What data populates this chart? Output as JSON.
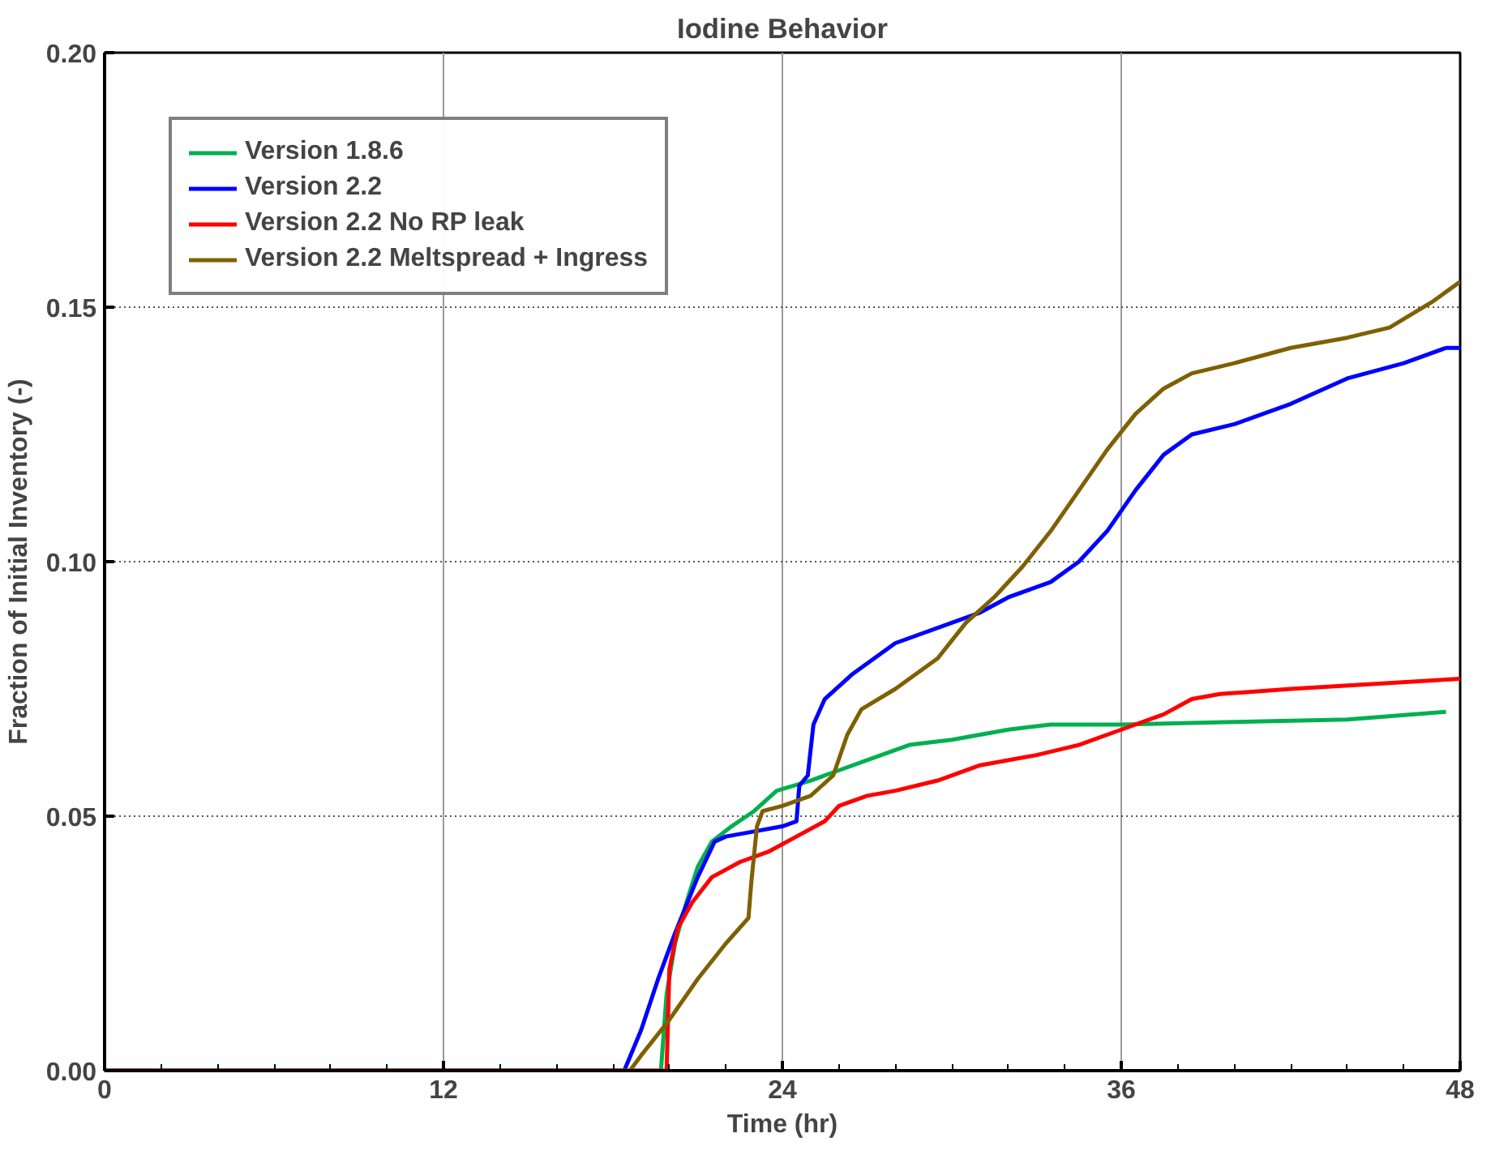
{
  "chart_data": {
    "type": "line",
    "title": "Iodine Behavior",
    "xlabel": "Time (hr)",
    "ylabel": "Fraction of Initial Inventory (-)",
    "xlim": [
      0,
      48
    ],
    "ylim": [
      0,
      0.2
    ],
    "xticks": [
      0,
      12,
      24,
      36,
      48
    ],
    "yticks": [
      {
        "value": 0,
        "label": "0.00"
      },
      {
        "value": 0.05,
        "label": "0.05"
      },
      {
        "value": 0.1,
        "label": "0.10"
      },
      {
        "value": 0.15,
        "label": "0.15"
      },
      {
        "value": 0.2,
        "label": "0.20"
      }
    ],
    "grid": true,
    "legend": "top left",
    "marker": "none",
    "line_style": "solid",
    "series": [
      {
        "name": "Version 1.8.6",
        "color": "#00b050",
        "x": [
          0,
          19.7,
          19.9,
          20.2,
          20.6,
          21.0,
          21.5,
          22.2,
          23,
          23.8,
          25,
          26,
          27,
          28.5,
          30,
          32,
          33.5,
          36,
          40,
          44,
          47.5
        ],
        "values": [
          0,
          0,
          0.015,
          0.025,
          0.033,
          0.04,
          0.045,
          0.048,
          0.051,
          0.055,
          0.057,
          0.059,
          0.061,
          0.064,
          0.065,
          0.067,
          0.068,
          0.068,
          0.0685,
          0.069,
          0.0705
        ]
      },
      {
        "name": "Version 2.2",
        "color": "#0000ff",
        "x": [
          0,
          18.4,
          19,
          19.6,
          20.2,
          21,
          21.6,
          22,
          23,
          24,
          24.5,
          24.6,
          24.9,
          25.1,
          25.5,
          26.5,
          28,
          30,
          31,
          32,
          33.5,
          34.5,
          35.5,
          36.5,
          37.5,
          38.5,
          40,
          42,
          44,
          46,
          47.5,
          48
        ],
        "values": [
          0,
          0,
          0.008,
          0.018,
          0.027,
          0.038,
          0.045,
          0.046,
          0.047,
          0.048,
          0.049,
          0.056,
          0.058,
          0.068,
          0.073,
          0.078,
          0.084,
          0.088,
          0.09,
          0.093,
          0.096,
          0.1,
          0.106,
          0.114,
          0.121,
          0.125,
          0.127,
          0.131,
          0.136,
          0.139,
          0.142,
          0.142
        ]
      },
      {
        "name": "Version 2.2 No RP leak",
        "color": "#ff0000",
        "x": [
          0,
          19.9,
          20.0,
          20.3,
          20.8,
          21.5,
          22.5,
          23.5,
          24.5,
          25.5,
          26,
          27,
          28,
          29.5,
          31,
          33,
          34.5,
          36,
          37.5,
          38.5,
          39.5,
          42,
          45,
          48
        ],
        "values": [
          0,
          0,
          0.02,
          0.028,
          0.033,
          0.038,
          0.041,
          0.043,
          0.046,
          0.049,
          0.052,
          0.054,
          0.055,
          0.057,
          0.06,
          0.062,
          0.064,
          0.067,
          0.07,
          0.073,
          0.074,
          0.075,
          0.076,
          0.077
        ]
      },
      {
        "name": "Version 2.2 Meltspread + Ingress",
        "color": "#7f6000",
        "x": [
          0,
          18.6,
          19,
          20,
          21,
          22,
          22.8,
          22.9,
          23.1,
          23.3,
          24,
          25,
          25.8,
          26.3,
          26.8,
          28,
          29.5,
          30.5,
          31.5,
          32.5,
          33.5,
          34.5,
          35.5,
          36.5,
          37.5,
          38.5,
          40,
          42,
          44,
          45.5,
          47,
          48
        ],
        "values": [
          0,
          0,
          0.003,
          0.01,
          0.018,
          0.025,
          0.03,
          0.037,
          0.048,
          0.051,
          0.052,
          0.054,
          0.058,
          0.066,
          0.071,
          0.075,
          0.081,
          0.088,
          0.093,
          0.099,
          0.106,
          0.114,
          0.122,
          0.129,
          0.134,
          0.137,
          0.139,
          0.142,
          0.144,
          0.146,
          0.151,
          0.155
        ]
      }
    ]
  }
}
